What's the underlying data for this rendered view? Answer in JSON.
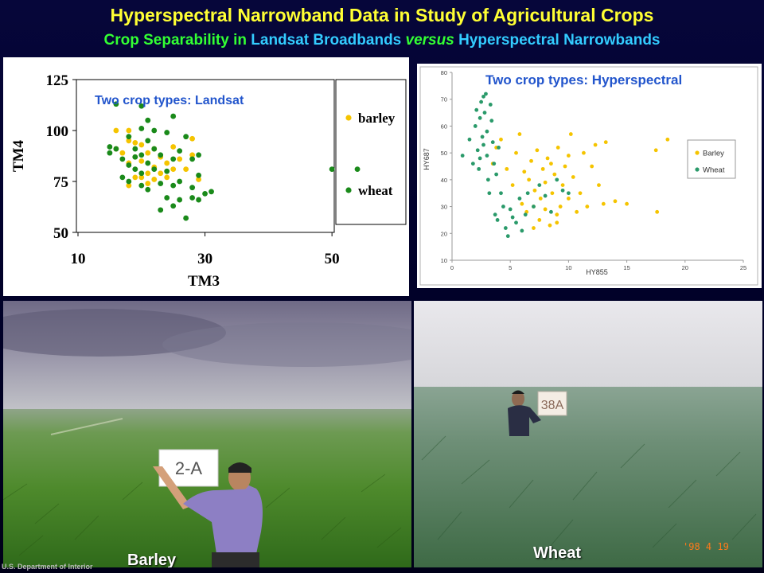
{
  "slide": {
    "title": "Hyperspectral Narrowband Data in Study of Agricultural Crops",
    "subtitle_parts": {
      "a": "Crop Separability in ",
      "b": "Landsat Broadbands ",
      "c": "versus",
      "d": " Hyperspectral Narrowbands"
    },
    "footer": "U.S. Department of Interior",
    "colors": {
      "title": "#ffff33",
      "green": "#33ff33",
      "cyan": "#33ccff",
      "background": "#000026"
    }
  },
  "photos": {
    "barley": {
      "caption": "Barley",
      "sign": "2-A"
    },
    "wheat": {
      "caption": "Wheat",
      "sign": "38A",
      "date_stamp": "'98 4 19"
    }
  },
  "chart_data": [
    {
      "type": "scatter",
      "title": "Two crop types: Landsat",
      "xlabel": "TM3",
      "ylabel": "TM4",
      "xlim": [
        10,
        50
      ],
      "ylim": [
        50,
        125
      ],
      "xticks": [
        10,
        30,
        50
      ],
      "yticks": [
        50,
        75,
        100,
        125
      ],
      "legend_position": "right",
      "series": [
        {
          "name": "barley",
          "color": "#f5c400",
          "points": [
            [
              16,
              100
            ],
            [
              16,
              91
            ],
            [
              17,
              89
            ],
            [
              18,
              100
            ],
            [
              18,
              95
            ],
            [
              18,
              84
            ],
            [
              19,
              94
            ],
            [
              19,
              87
            ],
            [
              19,
              77
            ],
            [
              20,
              93
            ],
            [
              20,
              85
            ],
            [
              20,
              77
            ],
            [
              21,
              89
            ],
            [
              21,
              79
            ],
            [
              21,
              74
            ],
            [
              22,
              91
            ],
            [
              22,
              82
            ],
            [
              22,
              76
            ],
            [
              23,
              87
            ],
            [
              23,
              79
            ],
            [
              24,
              84
            ],
            [
              24,
              77
            ],
            [
              25,
              92
            ],
            [
              25,
              81
            ],
            [
              26,
              86
            ],
            [
              27,
              81
            ],
            [
              28,
              96
            ],
            [
              28,
              88
            ],
            [
              29,
              76
            ],
            [
              18,
              73
            ]
          ]
        },
        {
          "name": "wheat",
          "color": "#1a8a1a",
          "points": [
            [
              15,
              92
            ],
            [
              15,
              89
            ],
            [
              16,
              113
            ],
            [
              16,
              91
            ],
            [
              17,
              86
            ],
            [
              17,
              77
            ],
            [
              18,
              97
            ],
            [
              18,
              83
            ],
            [
              18,
              75
            ],
            [
              19,
              91
            ],
            [
              19,
              87
            ],
            [
              19,
              81
            ],
            [
              20,
              112
            ],
            [
              20,
              101
            ],
            [
              20,
              88
            ],
            [
              20,
              79
            ],
            [
              20,
              73
            ],
            [
              21,
              105
            ],
            [
              21,
              95
            ],
            [
              21,
              84
            ],
            [
              21,
              71
            ],
            [
              22,
              100
            ],
            [
              22,
              91
            ],
            [
              22,
              81
            ],
            [
              23,
              88
            ],
            [
              23,
              74
            ],
            [
              23,
              61
            ],
            [
              24,
              99
            ],
            [
              24,
              80
            ],
            [
              24,
              67
            ],
            [
              25,
              107
            ],
            [
              25,
              86
            ],
            [
              25,
              73
            ],
            [
              25,
              63
            ],
            [
              26,
              90
            ],
            [
              26,
              75
            ],
            [
              26,
              66
            ],
            [
              27,
              97
            ],
            [
              27,
              57
            ],
            [
              28,
              86
            ],
            [
              28,
              72
            ],
            [
              28,
              67
            ],
            [
              29,
              88
            ],
            [
              29,
              78
            ],
            [
              29,
              66
            ],
            [
              30,
              69
            ],
            [
              31,
              70
            ],
            [
              50,
              81
            ],
            [
              54,
              81
            ]
          ]
        }
      ]
    },
    {
      "type": "scatter",
      "title": "Two crop types: Hyperspectral",
      "xlabel": "HY855",
      "ylabel": "HY687",
      "xlim": [
        0,
        25
      ],
      "ylim": [
        10,
        80
      ],
      "xticks": [
        0,
        5,
        10,
        15,
        20,
        25
      ],
      "yticks": [
        10,
        20,
        30,
        40,
        50,
        60,
        70,
        80
      ],
      "legend_position": "right",
      "series": [
        {
          "name": "Barley",
          "color": "#f5c400",
          "points": [
            [
              3.5,
              46
            ],
            [
              3.8,
              52
            ],
            [
              4.2,
              55
            ],
            [
              4.7,
              44
            ],
            [
              5.2,
              38
            ],
            [
              5.5,
              50
            ],
            [
              5.8,
              57
            ],
            [
              6,
              31
            ],
            [
              6.2,
              43
            ],
            [
              6.4,
              28
            ],
            [
              6.6,
              40
            ],
            [
              6.8,
              47
            ],
            [
              7,
              30
            ],
            [
              7.1,
              36
            ],
            [
              7.3,
              51
            ],
            [
              7.5,
              25
            ],
            [
              7.6,
              33
            ],
            [
              7.8,
              44
            ],
            [
              8,
              29
            ],
            [
              8,
              39
            ],
            [
              8.2,
              48
            ],
            [
              8.4,
              23
            ],
            [
              8.6,
              35
            ],
            [
              8.8,
              42
            ],
            [
              9,
              27
            ],
            [
              9.1,
              52
            ],
            [
              9.3,
              30
            ],
            [
              9.5,
              38
            ],
            [
              9.7,
              45
            ],
            [
              10,
              33
            ],
            [
              10.2,
              57
            ],
            [
              10.4,
              41
            ],
            [
              10.7,
              28
            ],
            [
              11,
              35
            ],
            [
              11.3,
              50
            ],
            [
              11.6,
              30
            ],
            [
              12,
              45
            ],
            [
              12.3,
              53
            ],
            [
              12.6,
              38
            ],
            [
              13,
              31
            ],
            [
              13.2,
              54
            ],
            [
              14,
              32
            ],
            [
              15,
              31
            ],
            [
              17.5,
              51
            ],
            [
              17.6,
              28
            ],
            [
              18.5,
              55
            ],
            [
              9,
              24
            ],
            [
              7,
              22
            ],
            [
              8.5,
              46
            ],
            [
              10,
              49
            ]
          ]
        },
        {
          "name": "Wheat",
          "color": "#2a9a6a",
          "points": [
            [
              0.9,
              49
            ],
            [
              1.8,
              46
            ],
            [
              2,
              60
            ],
            [
              2.1,
              66
            ],
            [
              2.2,
              51
            ],
            [
              2.3,
              44
            ],
            [
              2.4,
              63
            ],
            [
              2.5,
              69
            ],
            [
              2.6,
              56
            ],
            [
              2.7,
              71
            ],
            [
              2.7,
              53
            ],
            [
              2.8,
              65
            ],
            [
              2.9,
              72
            ],
            [
              3,
              58
            ],
            [
              3,
              49
            ],
            [
              3.1,
              40
            ],
            [
              3.2,
              35
            ],
            [
              3.3,
              68
            ],
            [
              3.4,
              62
            ],
            [
              3.5,
              54
            ],
            [
              3.6,
              46
            ],
            [
              3.7,
              27
            ],
            [
              3.9,
              25
            ],
            [
              4.2,
              35
            ],
            [
              4.4,
              30
            ],
            [
              4.6,
              22
            ],
            [
              4.8,
              19
            ],
            [
              5.2,
              26
            ],
            [
              5.5,
              24
            ],
            [
              5.8,
              33
            ],
            [
              6,
              21
            ],
            [
              6.3,
              27
            ],
            [
              6.5,
              35
            ],
            [
              7,
              30
            ],
            [
              7.5,
              38
            ],
            [
              8,
              34
            ],
            [
              8.5,
              28
            ],
            [
              9,
              40
            ],
            [
              9.5,
              36
            ],
            [
              10,
              35
            ],
            [
              4,
              52
            ],
            [
              3.8,
              42
            ],
            [
              2.4,
              48
            ],
            [
              1.5,
              55
            ],
            [
              5,
              29
            ]
          ]
        }
      ]
    }
  ]
}
